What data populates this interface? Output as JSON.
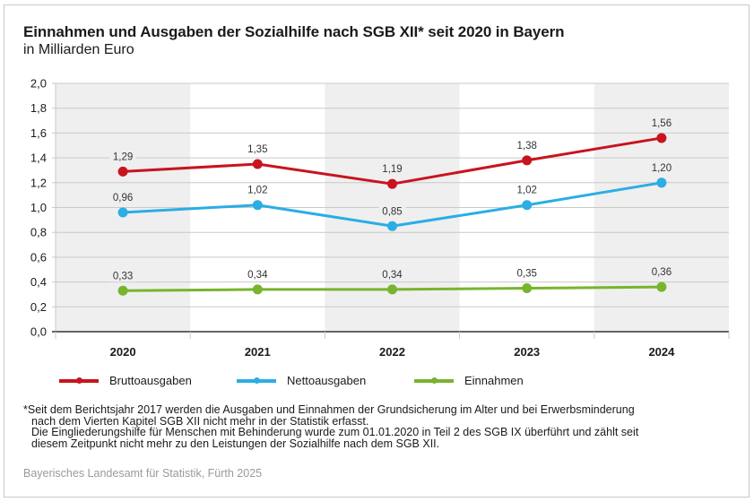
{
  "header": {
    "title": "Einnahmen und Ausgaben der Sozialhilfe nach SGB XII* seit 2020 in Bayern",
    "subtitle": "in Milliarden Euro"
  },
  "chart_data": {
    "type": "line",
    "title": "Einnahmen und Ausgaben der Sozialhilfe nach SGB XII* seit 2020 in Bayern",
    "subtitle": "in Milliarden Euro",
    "xlabel": "",
    "ylabel": "",
    "x": [
      "2020",
      "2021",
      "2022",
      "2023",
      "2024"
    ],
    "ylim": [
      0,
      2.0
    ],
    "yticks": [
      0.0,
      0.2,
      0.4,
      0.6,
      0.8,
      1.0,
      1.2,
      1.4,
      1.6,
      1.8,
      2.0
    ],
    "ytick_labels": [
      "0,0",
      "0,2",
      "0,4",
      "0,6",
      "0,8",
      "1,0",
      "1,2",
      "1,4",
      "1,6",
      "1,8",
      "2,0"
    ],
    "grid": true,
    "shaded_columns": [
      "2020",
      "2022",
      "2024"
    ],
    "legend_position": "bottom",
    "series": [
      {
        "name": "Bruttoausgaben",
        "color": "#c8141e",
        "values": [
          1.29,
          1.35,
          1.19,
          1.38,
          1.56
        ],
        "labels": [
          "1,29",
          "1,35",
          "1,19",
          "1,38",
          "1,56"
        ]
      },
      {
        "name": "Nettoausgaben",
        "color": "#2aaee3",
        "values": [
          0.96,
          1.02,
          0.85,
          1.02,
          1.2
        ],
        "labels": [
          "0,96",
          "1,02",
          "0,85",
          "1,02",
          "1,20"
        ]
      },
      {
        "name": "Einnahmen",
        "color": "#78b42d",
        "values": [
          0.33,
          0.34,
          0.34,
          0.35,
          0.36
        ],
        "labels": [
          "0,33",
          "0,34",
          "0,34",
          "0,35",
          "0,36"
        ]
      }
    ]
  },
  "footnote": {
    "lines": [
      "*Seit dem Berichtsjahr 2017 werden die Ausgaben und Einnahmen der Grundsicherung im Alter und bei Erwerbsminderung",
      "nach dem Vierten Kapitel SGB XII nicht mehr in der Statistik erfasst.",
      "Die Eingliederungshilfe für Menschen mit Behinderung wurde zum 01.01.2020 in Teil 2 des SGB IX überführt und zählt seit",
      "diesem Zeitpunkt nicht mehr zu den Leistungen der Sozialhilfe nach dem SGB XII."
    ]
  },
  "source": "Bayerisches Landesamt für Statistik, Fürth 2025"
}
